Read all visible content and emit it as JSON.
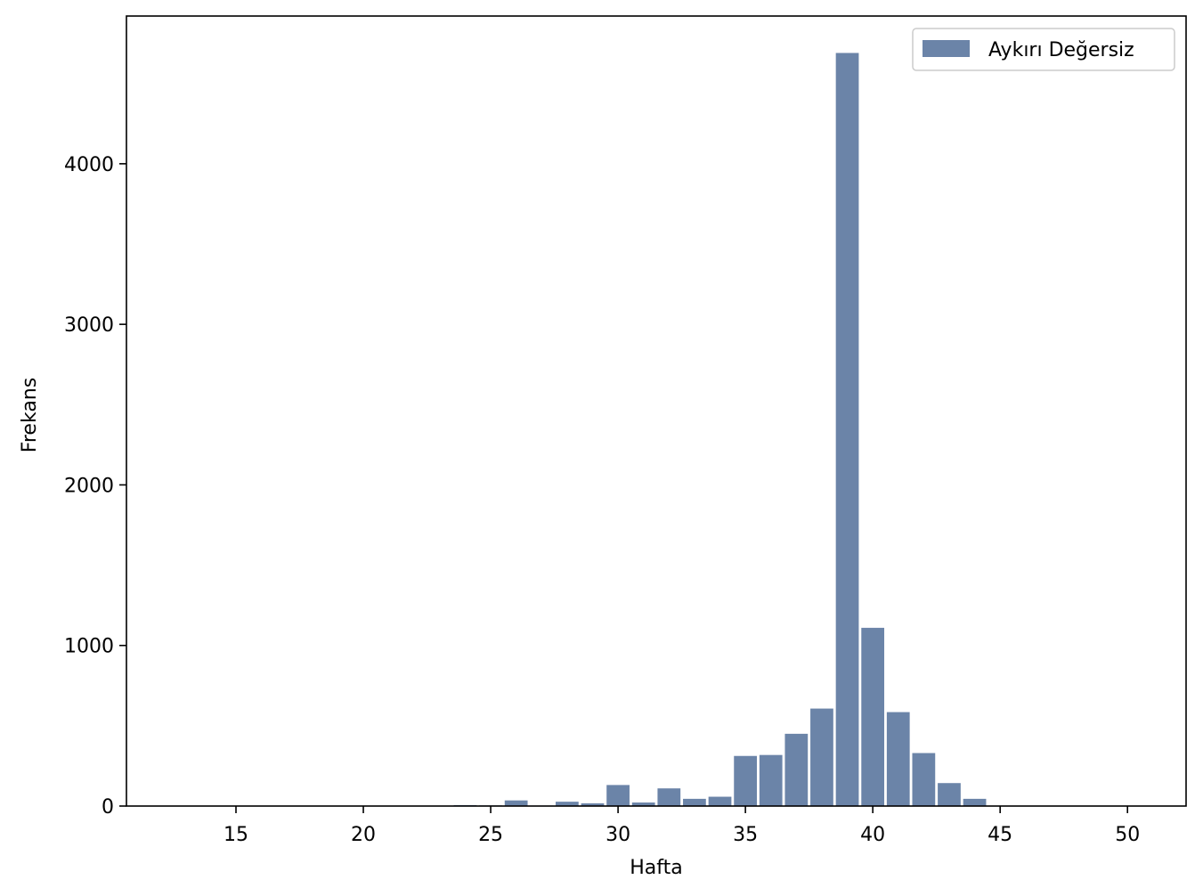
{
  "chart_data": {
    "type": "bar",
    "xlabel": "Hafta",
    "ylabel": "Frekans",
    "xlim": [
      10.7,
      52.3
    ],
    "ylim": [
      0,
      4920
    ],
    "xticks": [
      15,
      20,
      25,
      30,
      35,
      40,
      45,
      50
    ],
    "yticks": [
      0,
      1000,
      2000,
      3000,
      4000
    ],
    "bin_width": 1,
    "bar_fraction": 0.9,
    "bar_color": "#6b84a8",
    "grid": false,
    "legend": {
      "position": "top-right"
    },
    "series": [
      {
        "name": "Aykırı Değersiz",
        "x": [
          24,
          25,
          26,
          27,
          28,
          29,
          30,
          31,
          32,
          33,
          34,
          35,
          36,
          37,
          38,
          39,
          40,
          41,
          42,
          43,
          44
        ],
        "values": [
          6,
          4,
          35,
          3,
          27,
          17,
          131,
          22,
          110,
          45,
          58,
          312,
          318,
          450,
          607,
          4690,
          1110,
          585,
          330,
          143,
          45
        ]
      }
    ]
  }
}
